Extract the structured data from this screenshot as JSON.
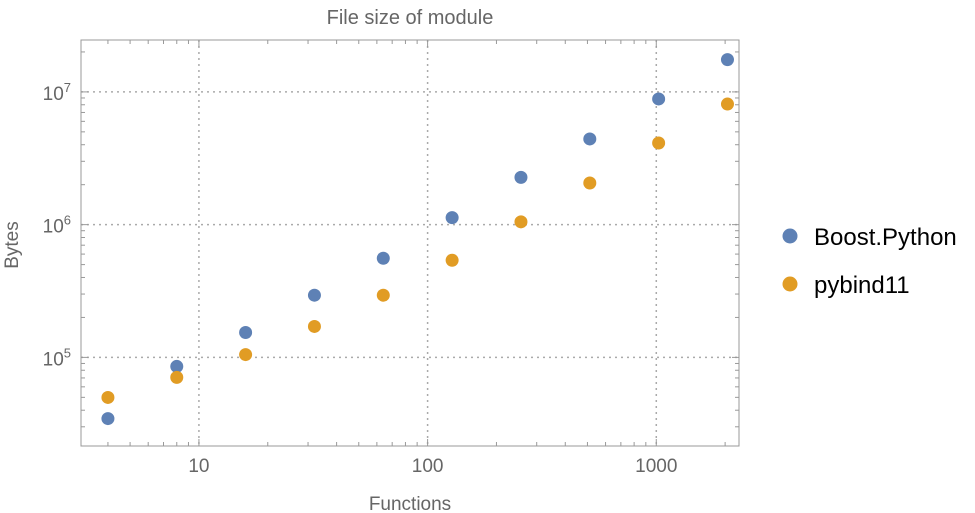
{
  "chart_data": {
    "type": "scatter",
    "title": "File size of module",
    "xlabel": "Functions",
    "ylabel": "Bytes",
    "xscale": "log",
    "yscale": "log",
    "xlim": [
      3.05,
      2300
    ],
    "ylim": [
      21500,
      24600000
    ],
    "grid": true,
    "legend_position": "right",
    "x_ticks": [
      {
        "value": 10,
        "label": "10"
      },
      {
        "value": 100,
        "label": "100"
      },
      {
        "value": 1000,
        "label": "1000"
      }
    ],
    "y_ticks": [
      {
        "value": 100000,
        "base": "10",
        "exp": "5"
      },
      {
        "value": 1000000,
        "base": "10",
        "exp": "6"
      },
      {
        "value": 10000000,
        "base": "10",
        "exp": "7"
      }
    ],
    "x": [
      4,
      8,
      16,
      32,
      64,
      128,
      256,
      512,
      1024,
      2048
    ],
    "series": [
      {
        "name": "Boost.Python",
        "color": "#5E81B5",
        "values": [
          34600,
          85500,
          154000,
          294000,
          558000,
          1130000,
          2270000,
          4420000,
          8850000,
          17500000
        ]
      },
      {
        "name": "pybind11",
        "color": "#E19C24",
        "values": [
          49900,
          70700,
          105000,
          171000,
          294000,
          539000,
          1050000,
          2060000,
          4120000,
          8100000
        ]
      }
    ]
  }
}
